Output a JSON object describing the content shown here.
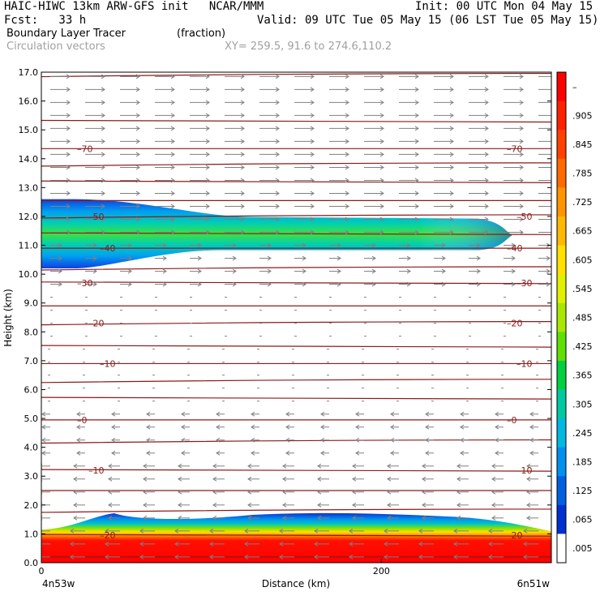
{
  "header": {
    "model_line": "HAIC-HIWC 13km ARW-GFS init   NCAR/MMM",
    "init_line": "Init: 00 UTC Mon 04 May 15",
    "fcst_line": "Fcst:   33 h",
    "valid_line": "Valid: 09 UTC Tue 05 May 15 (06 LST Tue 05 May 15)",
    "field_name": "Boundary Layer Tracer",
    "field_unit": "(fraction)",
    "overlay_name": "Circulation vectors",
    "xsec_coords": "XY= 259.5, 91.6 to 274.6,110.2"
  },
  "chart_data": {
    "type": "heatmap",
    "xlabel": "Distance (km)",
    "ylabel": "Height (km)",
    "xlim": [
      0,
      300
    ],
    "ylim": [
      0,
      17
    ],
    "x_ticks": [
      {
        "value": 0,
        "label": "0"
      },
      {
        "value": 200,
        "label": "200"
      }
    ],
    "x_end_labels": [
      "4n53w",
      "6n51w"
    ],
    "y_ticks": [
      "0.0",
      "1.0",
      "2.0",
      "3.0",
      "4.0",
      "5.0",
      "6.0",
      "7.0",
      "8.0",
      "9.0",
      "10.0",
      "11.0",
      "12.0",
      "13.0",
      "14.0",
      "15.0",
      "16.0",
      "17.0"
    ],
    "colorbar": {
      "labels": [
        "–",
        ".905",
        ".845",
        ".785",
        ".725",
        ".665",
        ".605",
        ".545",
        ".485",
        ".425",
        ".365",
        ".305",
        ".245",
        ".185",
        ".125",
        ".065",
        ".005"
      ],
      "colors": [
        "#ff0000",
        "#ff2000",
        "#ff4000",
        "#ff6a00",
        "#ff9400",
        "#ffb800",
        "#ffe000",
        "#e0f000",
        "#a8e800",
        "#60e000",
        "#00d040",
        "#00c8a0",
        "#00b8e0",
        "#0090f0",
        "#0060e0",
        "#0030d0",
        "#ffffff"
      ]
    },
    "tracer_layers": [
      {
        "name": "upper tracer layer",
        "x_range": [
          0,
          271
        ],
        "base_km": [
          10.2,
          11.0
        ],
        "top_km": [
          12.6,
          11.7
        ],
        "max_fraction": 0.45
      },
      {
        "name": "boundary layer",
        "x_range": [
          0,
          300
        ],
        "base_km": 0.0,
        "top_km": [
          1.2,
          1.6
        ],
        "max_fraction": 1.0
      }
    ],
    "isotherms": {
      "color": "#8b1a1a",
      "labels": [
        {
          "value": "70",
          "height_km": 14.35
        },
        {
          "value": "50",
          "height_km": 12.0
        },
        {
          "value": "40",
          "height_km": 10.9
        },
        {
          "value": "30",
          "height_km": 9.7
        },
        {
          "value": "20",
          "height_km": 8.3
        },
        {
          "value": "10",
          "height_km": 6.9
        },
        {
          "value": "0",
          "height_km": 4.95
        },
        {
          "value": "10",
          "height_km": 3.2
        },
        {
          "value": "20",
          "height_km": 0.95
        }
      ],
      "line_heights_km": [
        16.9,
        15.3,
        14.35,
        13.8,
        13.2,
        12.55,
        12.0,
        11.4,
        10.9,
        10.2,
        9.7,
        8.9,
        8.3,
        7.5,
        6.9,
        6.3,
        5.7,
        4.95,
        4.2,
        3.2,
        2.5,
        1.8,
        0.95,
        0.2
      ]
    },
    "wind_vectors": {
      "color": "#808080",
      "direction_by_height": [
        {
          "height_range_km": [
            9.5,
            17
          ],
          "direction": "right"
        },
        {
          "height_range_km": [
            5.5,
            9.5
          ],
          "direction": "weak/variable"
        },
        {
          "height_range_km": [
            0,
            5.5
          ],
          "direction": "left"
        }
      ]
    },
    "grid": false,
    "legend": "right colorbar"
  }
}
